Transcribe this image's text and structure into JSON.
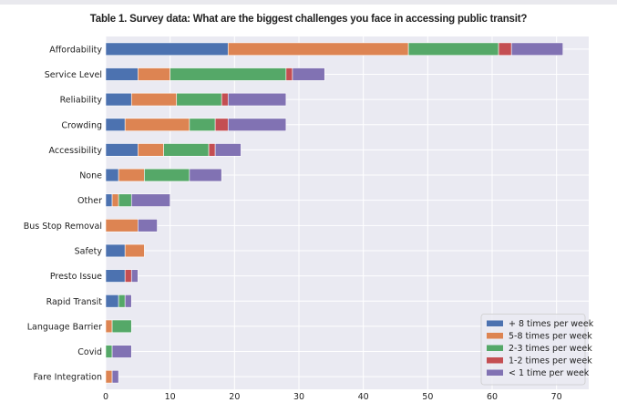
{
  "chart_data": {
    "type": "bar",
    "orientation": "horizontal",
    "stacked": true,
    "title": "Table 1. Survey data: What are the biggest challenges you face in accessing public transit?",
    "xlabel": "",
    "ylabel": "",
    "xlim": [
      0,
      75
    ],
    "xticks": [
      0,
      10,
      20,
      30,
      40,
      50,
      60,
      70
    ],
    "grid": true,
    "legend_position": "bottom-right",
    "categories": [
      "Affordability",
      "Service Level",
      "Reliability",
      "Crowding",
      "Accessibility",
      "None",
      "Other",
      "Bus Stop Removal",
      "Safety",
      "Presto Issue",
      "Rapid Transit",
      "Language Barrier",
      "Covid",
      "Fare Integration"
    ],
    "series": [
      {
        "name": "+ 8 times per week",
        "color": "#4c72b0",
        "values": [
          19,
          5,
          4,
          3,
          5,
          2,
          1,
          0,
          3,
          3,
          2,
          0,
          0,
          0
        ]
      },
      {
        "name": "5-8 times per week",
        "color": "#dd8452",
        "values": [
          28,
          5,
          7,
          10,
          4,
          4,
          1,
          5,
          3,
          0,
          0,
          1,
          0,
          1
        ]
      },
      {
        "name": "2-3 times per week",
        "color": "#55a868",
        "values": [
          14,
          18,
          7,
          4,
          7,
          7,
          2,
          0,
          0,
          0,
          1,
          3,
          1,
          0
        ]
      },
      {
        "name": "1-2 times per week",
        "color": "#c44e52",
        "values": [
          2,
          1,
          1,
          2,
          1,
          0,
          0,
          0,
          0,
          1,
          0,
          0,
          0,
          0
        ]
      },
      {
        "name": "< 1 time per week",
        "color": "#8172b3",
        "values": [
          8,
          5,
          9,
          9,
          4,
          5,
          6,
          3,
          0,
          1,
          1,
          0,
          3,
          1
        ]
      }
    ]
  }
}
